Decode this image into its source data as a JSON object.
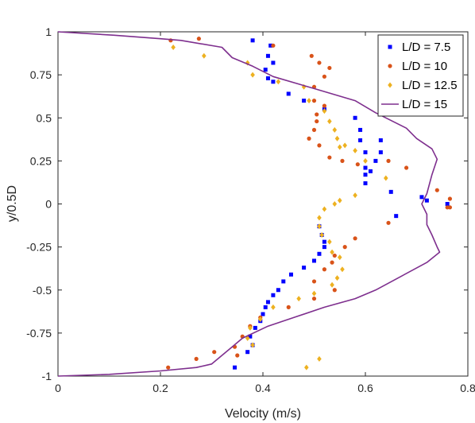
{
  "chart_data": {
    "type": "scatter",
    "title": "",
    "xlabel": "Velocity (m/s)",
    "ylabel": "y/0.5D",
    "xlim": [
      0,
      0.8
    ],
    "ylim": [
      -1,
      1
    ],
    "x_ticks": [
      0,
      0.2,
      0.4,
      0.6,
      0.8
    ],
    "x_tick_labels": [
      "0",
      "0.2",
      "0.4",
      "0.6",
      "0.8"
    ],
    "y_ticks": [
      -1,
      -0.75,
      -0.5,
      -0.25,
      0,
      0.25,
      0.5,
      0.75,
      1
    ],
    "y_tick_labels": [
      "-1",
      "-0.75",
      "-0.5",
      "-0.25",
      "0",
      "0.25",
      "0.5",
      "0.75",
      "1"
    ],
    "grid": false,
    "legend_position": "top-right",
    "series": [
      {
        "name": "L/D = 7.5",
        "marker": "square",
        "color": "#0000ff",
        "points": [
          [
            0.38,
            0.95
          ],
          [
            0.415,
            0.92
          ],
          [
            0.41,
            0.86
          ],
          [
            0.42,
            0.82
          ],
          [
            0.405,
            0.78
          ],
          [
            0.41,
            0.73
          ],
          [
            0.42,
            0.71
          ],
          [
            0.45,
            0.64
          ],
          [
            0.48,
            0.6
          ],
          [
            0.52,
            0.55
          ],
          [
            0.58,
            0.5
          ],
          [
            0.59,
            0.43
          ],
          [
            0.59,
            0.37
          ],
          [
            0.6,
            0.3
          ],
          [
            0.63,
            0.37
          ],
          [
            0.63,
            0.3
          ],
          [
            0.62,
            0.25
          ],
          [
            0.6,
            0.21
          ],
          [
            0.61,
            0.19
          ],
          [
            0.6,
            0.17
          ],
          [
            0.6,
            0.12
          ],
          [
            0.65,
            0.07
          ],
          [
            0.71,
            0.04
          ],
          [
            0.72,
            0.02
          ],
          [
            0.76,
            0.0
          ],
          [
            0.66,
            -0.07
          ],
          [
            0.51,
            -0.13
          ],
          [
            0.515,
            -0.18
          ],
          [
            0.52,
            -0.22
          ],
          [
            0.52,
            -0.25
          ],
          [
            0.51,
            -0.29
          ],
          [
            0.5,
            -0.33
          ],
          [
            0.48,
            -0.37
          ],
          [
            0.455,
            -0.41
          ],
          [
            0.44,
            -0.45
          ],
          [
            0.43,
            -0.5
          ],
          [
            0.42,
            -0.53
          ],
          [
            0.41,
            -0.57
          ],
          [
            0.405,
            -0.6
          ],
          [
            0.4,
            -0.64
          ],
          [
            0.395,
            -0.68
          ],
          [
            0.385,
            -0.72
          ],
          [
            0.375,
            -0.77
          ],
          [
            0.38,
            -0.82
          ],
          [
            0.37,
            -0.86
          ],
          [
            0.345,
            -0.95
          ]
        ]
      },
      {
        "name": "L/D = 10",
        "marker": "circle",
        "color": "#d95319",
        "points": [
          [
            0.22,
            0.95
          ],
          [
            0.275,
            0.96
          ],
          [
            0.42,
            0.92
          ],
          [
            0.495,
            0.86
          ],
          [
            0.51,
            0.82
          ],
          [
            0.53,
            0.79
          ],
          [
            0.52,
            0.74
          ],
          [
            0.5,
            0.68
          ],
          [
            0.5,
            0.6
          ],
          [
            0.52,
            0.57
          ],
          [
            0.505,
            0.52
          ],
          [
            0.505,
            0.48
          ],
          [
            0.5,
            0.43
          ],
          [
            0.49,
            0.38
          ],
          [
            0.51,
            0.34
          ],
          [
            0.53,
            0.27
          ],
          [
            0.555,
            0.25
          ],
          [
            0.585,
            0.23
          ],
          [
            0.645,
            0.25
          ],
          [
            0.68,
            0.21
          ],
          [
            0.74,
            0.08
          ],
          [
            0.765,
            0.03
          ],
          [
            0.765,
            -0.02
          ],
          [
            0.76,
            -0.02
          ],
          [
            0.645,
            -0.11
          ],
          [
            0.58,
            -0.2
          ],
          [
            0.56,
            -0.25
          ],
          [
            0.54,
            -0.3
          ],
          [
            0.535,
            -0.34
          ],
          [
            0.52,
            -0.38
          ],
          [
            0.5,
            -0.45
          ],
          [
            0.54,
            -0.5
          ],
          [
            0.5,
            -0.55
          ],
          [
            0.45,
            -0.6
          ],
          [
            0.395,
            -0.66
          ],
          [
            0.375,
            -0.71
          ],
          [
            0.36,
            -0.77
          ],
          [
            0.345,
            -0.83
          ],
          [
            0.35,
            -0.88
          ],
          [
            0.305,
            -0.86
          ],
          [
            0.27,
            -0.9
          ],
          [
            0.215,
            -0.95
          ]
        ]
      },
      {
        "name": "L/D = 12.5",
        "marker": "diamond",
        "color": "#edb120",
        "points": [
          [
            0.225,
            0.91
          ],
          [
            0.285,
            0.86
          ],
          [
            0.37,
            0.82
          ],
          [
            0.38,
            0.75
          ],
          [
            0.43,
            0.71
          ],
          [
            0.48,
            0.68
          ],
          [
            0.49,
            0.6
          ],
          [
            0.52,
            0.54
          ],
          [
            0.53,
            0.48
          ],
          [
            0.54,
            0.43
          ],
          [
            0.545,
            0.38
          ],
          [
            0.55,
            0.33
          ],
          [
            0.56,
            0.34
          ],
          [
            0.58,
            0.31
          ],
          [
            0.6,
            0.25
          ],
          [
            0.64,
            0.15
          ],
          [
            0.58,
            0.05
          ],
          [
            0.55,
            0.02
          ],
          [
            0.54,
            0.0
          ],
          [
            0.52,
            -0.03
          ],
          [
            0.51,
            -0.08
          ],
          [
            0.51,
            -0.13
          ],
          [
            0.515,
            -0.18
          ],
          [
            0.53,
            -0.22
          ],
          [
            0.535,
            -0.28
          ],
          [
            0.55,
            -0.31
          ],
          [
            0.555,
            -0.38
          ],
          [
            0.545,
            -0.43
          ],
          [
            0.535,
            -0.47
          ],
          [
            0.5,
            -0.52
          ],
          [
            0.47,
            -0.55
          ],
          [
            0.42,
            -0.6
          ],
          [
            0.395,
            -0.67
          ],
          [
            0.375,
            -0.72
          ],
          [
            0.37,
            -0.78
          ],
          [
            0.38,
            -0.82
          ],
          [
            0.51,
            -0.9
          ],
          [
            0.485,
            -0.95
          ]
        ]
      },
      {
        "name": "L/D = 15",
        "marker": "line",
        "color": "#7e2f8e",
        "points": [
          [
            0.0,
            1.0
          ],
          [
            0.11,
            0.98
          ],
          [
            0.2,
            0.96
          ],
          [
            0.24,
            0.95
          ],
          [
            0.32,
            0.91
          ],
          [
            0.34,
            0.85
          ],
          [
            0.38,
            0.8
          ],
          [
            0.42,
            0.74
          ],
          [
            0.5,
            0.67
          ],
          [
            0.58,
            0.6
          ],
          [
            0.62,
            0.53
          ],
          [
            0.68,
            0.44
          ],
          [
            0.7,
            0.38
          ],
          [
            0.73,
            0.32
          ],
          [
            0.74,
            0.26
          ],
          [
            0.73,
            0.17
          ],
          [
            0.72,
            0.06
          ],
          [
            0.71,
            0.0
          ],
          [
            0.72,
            -0.06
          ],
          [
            0.72,
            -0.12
          ],
          [
            0.73,
            -0.18
          ],
          [
            0.74,
            -0.25
          ],
          [
            0.745,
            -0.28
          ],
          [
            0.72,
            -0.34
          ],
          [
            0.67,
            -0.42
          ],
          [
            0.62,
            -0.5
          ],
          [
            0.58,
            -0.55
          ],
          [
            0.52,
            -0.6
          ],
          [
            0.46,
            -0.66
          ],
          [
            0.41,
            -0.71
          ],
          [
            0.36,
            -0.78
          ],
          [
            0.34,
            -0.83
          ],
          [
            0.32,
            -0.88
          ],
          [
            0.3,
            -0.93
          ],
          [
            0.27,
            -0.95
          ],
          [
            0.2,
            -0.97
          ],
          [
            0.1,
            -0.99
          ],
          [
            0.0,
            -1.0
          ]
        ]
      }
    ]
  }
}
